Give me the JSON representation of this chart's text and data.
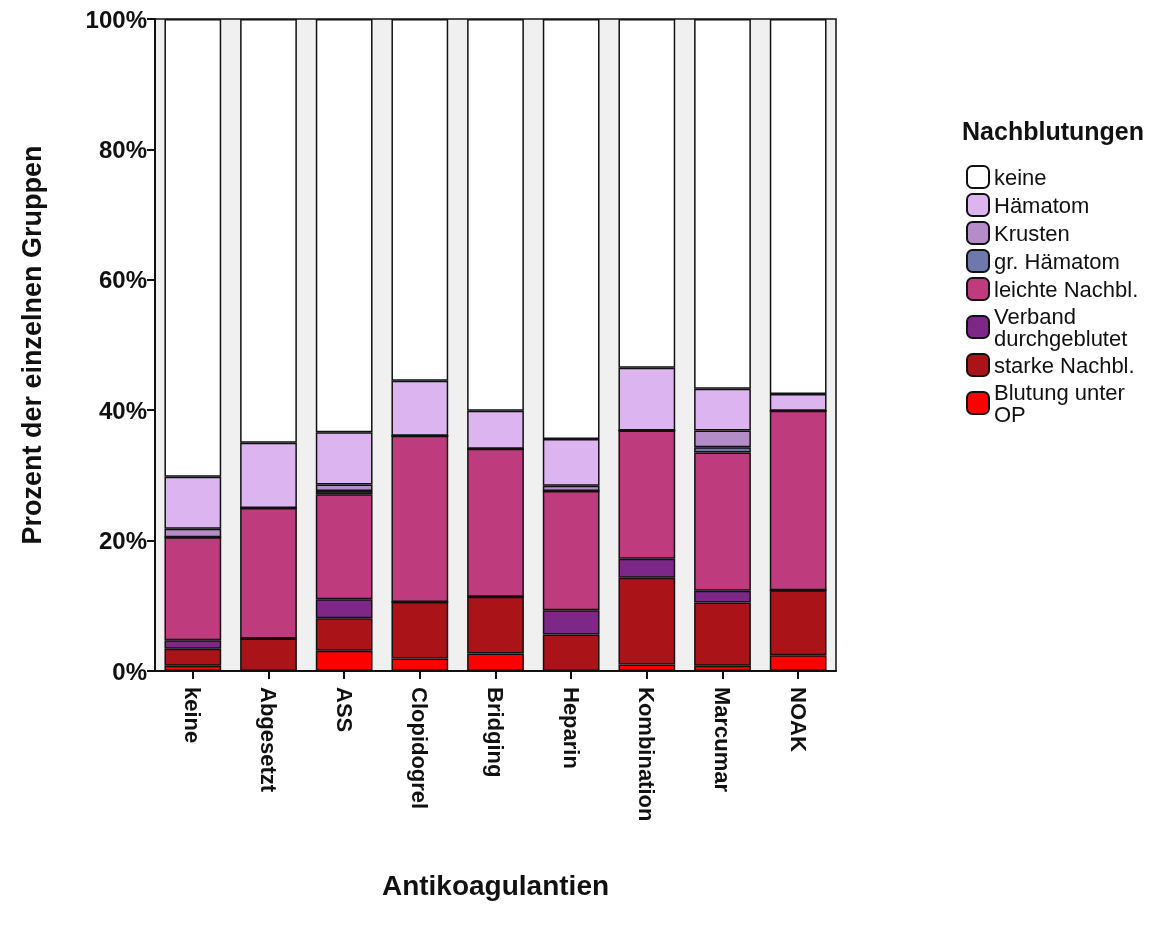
{
  "chart_data": {
    "type": "bar",
    "stacked": true,
    "xlabel": "Antikoagulantien",
    "ylabel": "Prozent der einzelnen Gruppen",
    "legend_title": "Nachblutungen",
    "legend": "right",
    "categories": [
      "keine",
      "Abgesetzt",
      "ASS",
      "Clopidogrel",
      "Bridging",
      "Heparin",
      "Kombination",
      "Marcumar",
      "NOAK"
    ],
    "ylim": [
      0,
      100
    ],
    "yticks": [
      {
        "value": 0,
        "label": "0%"
      },
      {
        "value": 20,
        "label": "20%"
      },
      {
        "value": 40,
        "label": "40%"
      },
      {
        "value": 60,
        "label": "60%"
      },
      {
        "value": 80,
        "label": "80%"
      },
      {
        "value": 100,
        "label": "100%"
      }
    ],
    "grid": false,
    "series": [
      {
        "name": "Blutung unter OP",
        "color": "#ff0000",
        "values": [
          0.8,
          0,
          3.1,
          1.9,
          2.7,
          null,
          1.0,
          0.8,
          2.4
        ]
      },
      {
        "name": "starke Nachbl.",
        "color": "#aa1419",
        "values": [
          2.6,
          5,
          5.0,
          8.7,
          8.7,
          5.6,
          13.3,
          9.7,
          10.0
        ]
      },
      {
        "name": "Verband durchgeblutet",
        "color": "#7d2887",
        "values": [
          1.3,
          0,
          2.9,
          0,
          0,
          3.7,
          2.9,
          1.8,
          0
        ]
      },
      {
        "name": "leichte Nachbl.",
        "color": "#be3c7d",
        "values": [
          15.8,
          20,
          16.1,
          25.5,
          22.7,
          18.3,
          19.7,
          21.2,
          27.5
        ]
      },
      {
        "name": "gr. Hämatom",
        "color": "#6e78aa",
        "values": [
          0,
          0,
          0.5,
          0,
          0,
          0,
          0,
          0.8,
          0
        ]
      },
      {
        "name": "Krusten",
        "color": "#b48cc8",
        "values": [
          1.3,
          0,
          1.0,
          0,
          0,
          0.8,
          0,
          2.6,
          0
        ]
      },
      {
        "name": "Hämatom",
        "color": "#dcb4f0",
        "values": [
          8.0,
          10,
          8.0,
          8.4,
          5.8,
          7.2,
          9.6,
          6.4,
          2.6
        ]
      },
      {
        "name": "keine",
        "color": "#ffffff",
        "values": [
          70.2,
          65,
          63.4,
          55.5,
          60.1,
          64.4,
          53.5,
          56.7,
          57.5
        ]
      }
    ]
  }
}
